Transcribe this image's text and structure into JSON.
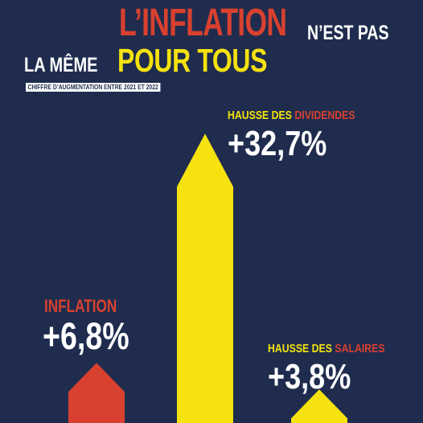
{
  "title": {
    "line1_highlight": "L’INFLATION",
    "line1_rest": "N’EST PAS",
    "line2_start": "LA MÊME",
    "line2_highlight": "POUR TOUS"
  },
  "subtitle": "CHIFFRE D’AUGMENTATION ENTRE 2021 ET 2022",
  "colors": {
    "background": "#1f2c4e",
    "red": "#d8412f",
    "yellow": "#f5e20f",
    "white": "#ffffff"
  },
  "chart_data": {
    "type": "bar",
    "title": "L’INFLATION N’EST PAS LA MÊME POUR TOUS",
    "subtitle": "CHIFFRE D’AUGMENTATION ENTRE 2021 ET 2022",
    "categories": [
      "INFLATION",
      "HAUSSE DES DIVIDENDES",
      "HAUSSE DES SALAIRES"
    ],
    "values": [
      6.8,
      32.7,
      3.8
    ],
    "value_labels": [
      "+6,8%",
      "+32,7%",
      "+3,8%"
    ],
    "bars": [
      {
        "category_prefix": "",
        "category_highlight": "INFLATION",
        "value_label": "+6,8%",
        "value": 6.8,
        "color": "#d8412f",
        "highlight_color": "#d8412f"
      },
      {
        "category_prefix": "HAUSSE DES ",
        "category_highlight": "DIVIDENDES",
        "value_label": "+32,7%",
        "value": 32.7,
        "color": "#f5e20f",
        "highlight_color": "#d8412f"
      },
      {
        "category_prefix": "HAUSSE DES ",
        "category_highlight": "SALAIRES",
        "value_label": "+3,8%",
        "value": 3.8,
        "color": "#f5e20f",
        "highlight_color": "#d8412f"
      }
    ],
    "grid": false,
    "legend": "none",
    "bar_shape": "arrow"
  }
}
